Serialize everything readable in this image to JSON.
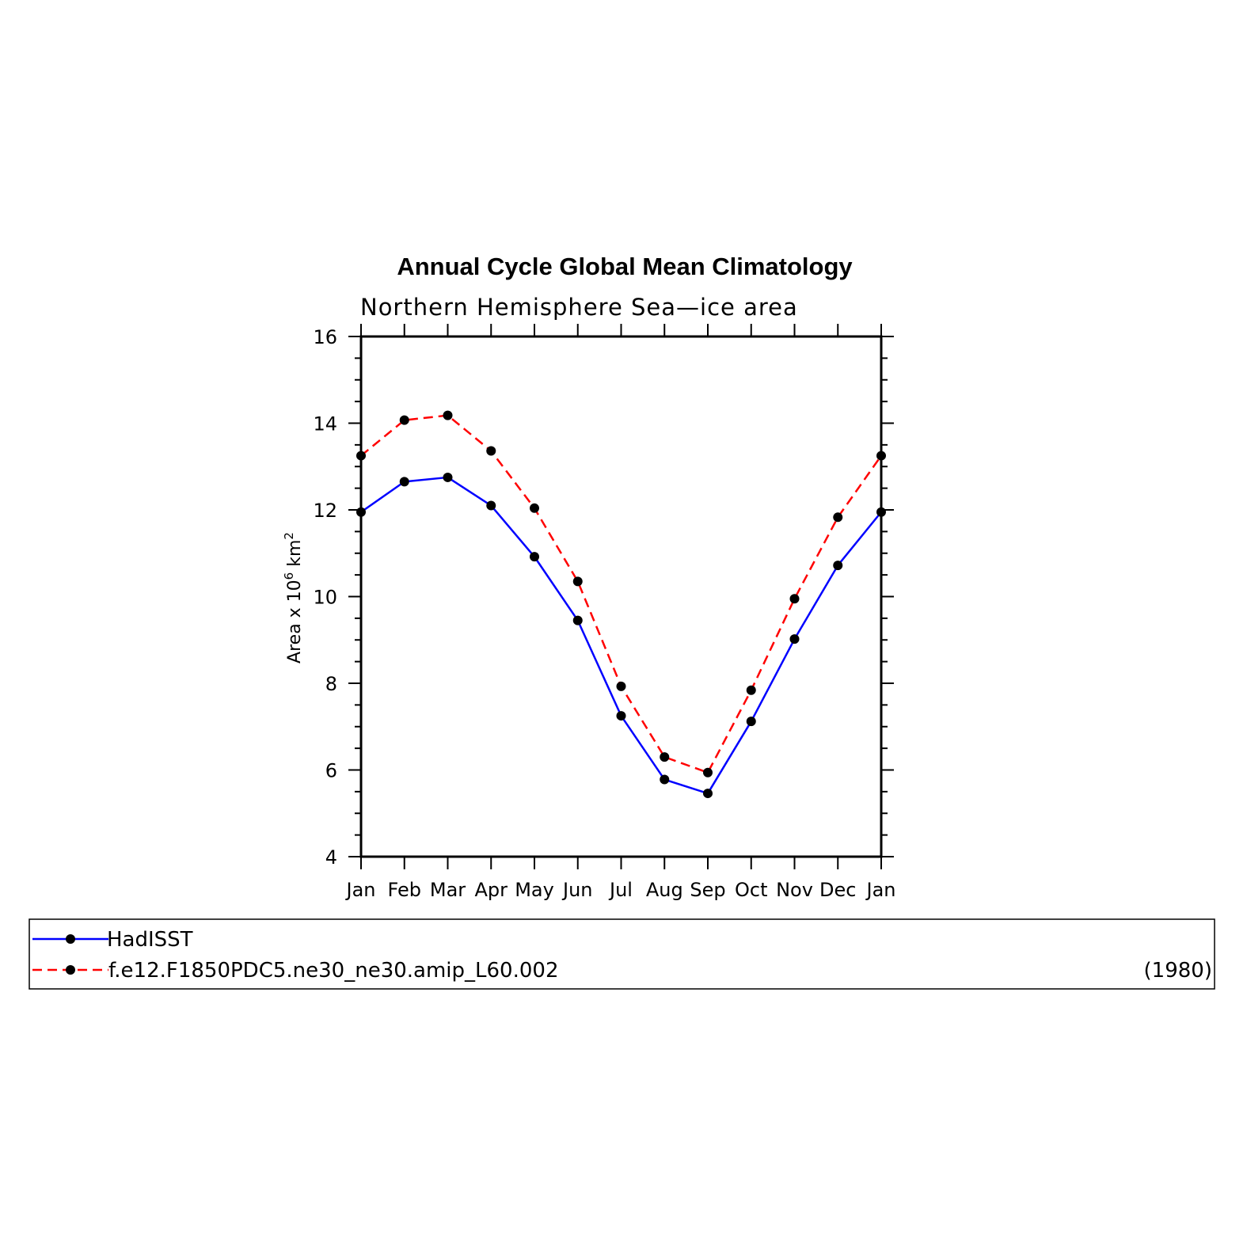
{
  "chart_data": {
    "type": "line",
    "title": "Annual Cycle Global Mean Climatology",
    "subtitle": "Northern Hemisphere Sea—ice area",
    "ylabel": {
      "text": "Area x 10",
      "sup1": "6",
      "unit": " km",
      "sup2": "2"
    },
    "ylim": [
      4,
      16
    ],
    "yticks": [
      4,
      6,
      8,
      10,
      12,
      14,
      16
    ],
    "categories": [
      "Jan",
      "Feb",
      "Mar",
      "Apr",
      "May",
      "Jun",
      "Jul",
      "Aug",
      "Sep",
      "Oct",
      "Nov",
      "Dec",
      "Jan"
    ],
    "series": [
      {
        "name": "HadISST",
        "color": "#0000ff",
        "dash": "solid",
        "values": [
          11.95,
          12.65,
          12.75,
          12.1,
          10.92,
          9.45,
          7.25,
          5.78,
          5.46,
          7.12,
          9.02,
          10.72,
          11.95
        ]
      },
      {
        "name": "f.e12.F1850PDC5.ne30_ne30.amip_L60.002",
        "color": "#ff0000",
        "dash": "dashed",
        "values": [
          13.25,
          14.07,
          14.18,
          13.36,
          12.04,
          10.35,
          7.93,
          6.3,
          5.94,
          7.84,
          9.95,
          11.83,
          13.25
        ]
      }
    ],
    "legend": {
      "placement": "bottom",
      "year_label": "(1980)"
    }
  }
}
